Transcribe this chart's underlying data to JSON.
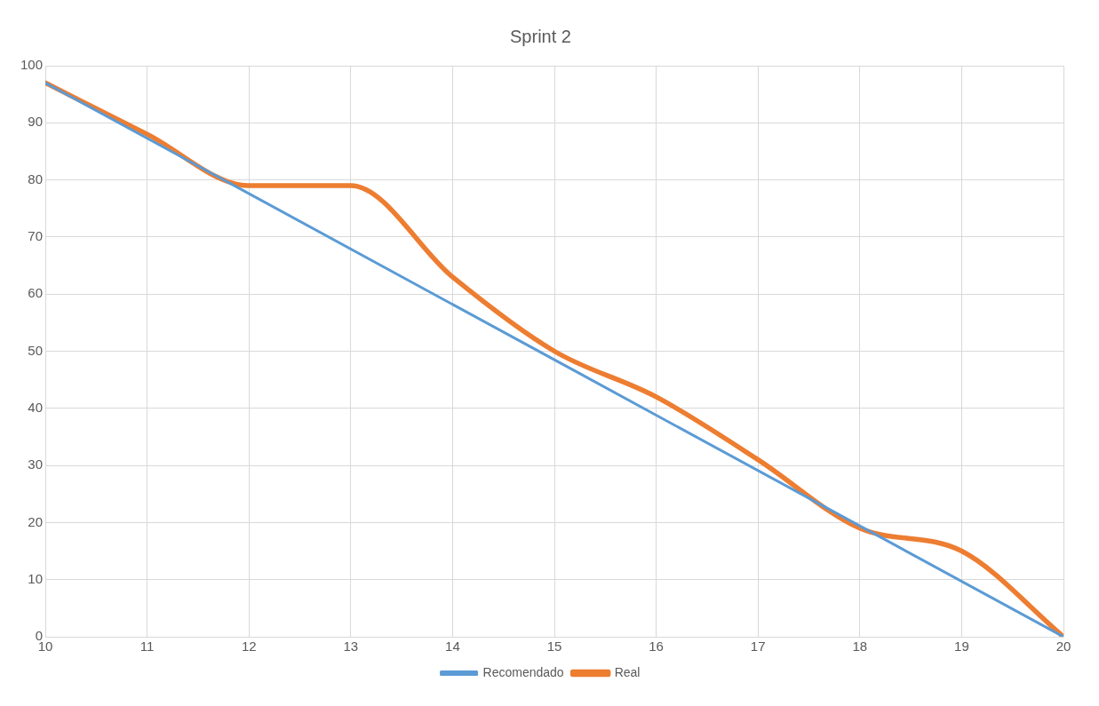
{
  "chart_data": {
    "type": "line",
    "title": "Sprint 2",
    "xlim": [
      10,
      20
    ],
    "xticks": [
      10,
      11,
      12,
      13,
      14,
      15,
      16,
      17,
      18,
      19,
      20
    ],
    "ylim": [
      0,
      100
    ],
    "yticks": [
      0,
      10,
      20,
      30,
      40,
      50,
      60,
      70,
      80,
      90,
      100
    ],
    "grid": true,
    "legend": "bottom",
    "marker": "none",
    "line_style": "solid",
    "series": [
      {
        "name": "Recomendado",
        "color": "#5b9bd5",
        "x": [
          10,
          20
        ],
        "values": [
          97,
          0
        ]
      },
      {
        "name": "Real",
        "color": "#ed7d31",
        "x": [
          10,
          11,
          12,
          13,
          14,
          15,
          16,
          17,
          18,
          19,
          20
        ],
        "values": [
          97,
          88,
          79,
          79,
          63,
          50,
          42,
          31,
          19,
          15,
          0
        ]
      }
    ]
  }
}
